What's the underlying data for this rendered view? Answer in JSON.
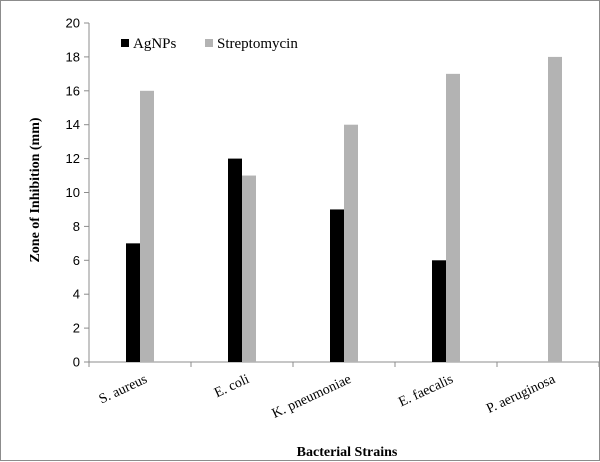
{
  "chart_data": {
    "type": "bar",
    "categories": [
      "S. aureus",
      "E. coli",
      "K. pneumoniae",
      "E. faecalis",
      "P. aeruginosa"
    ],
    "series": [
      {
        "name": "AgNPs",
        "color": "#000000",
        "values": [
          7,
          12,
          9,
          6,
          0
        ]
      },
      {
        "name": "Streptomycin",
        "color": "#b3b3b3",
        "values": [
          16,
          11,
          14,
          17,
          18
        ]
      }
    ],
    "xlabel": "Bacterial Strains",
    "ylabel": "Zone of Inhibition (mm)",
    "ylim": [
      0,
      20
    ],
    "yticks": [
      0,
      2,
      4,
      6,
      8,
      10,
      12,
      14,
      16,
      18,
      20
    ],
    "grid": false,
    "legend": "top-left"
  }
}
